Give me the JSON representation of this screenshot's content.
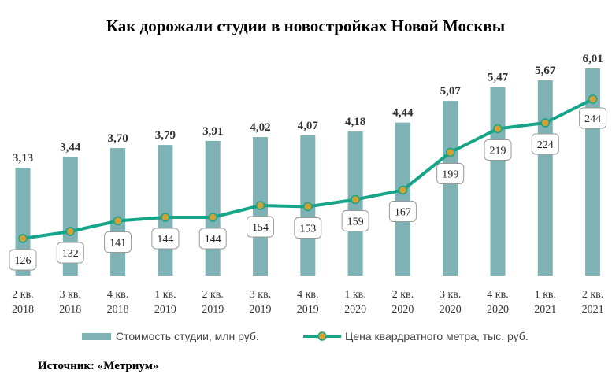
{
  "chart_data": {
    "type": "bar",
    "title": "Как дорожали студии в новостройках  Новой  Москвы",
    "categories": [
      [
        "2 кв.",
        "2018"
      ],
      [
        "3 кв.",
        "2018"
      ],
      [
        "4 кв.",
        "2018"
      ],
      [
        "1 кв.",
        "2019"
      ],
      [
        "2 кв.",
        "2019"
      ],
      [
        "3 кв.",
        "2019"
      ],
      [
        "4 кв.",
        "2019"
      ],
      [
        "1 кв.",
        "2020"
      ],
      [
        "2 кв.",
        "2020"
      ],
      [
        "3 кв.",
        "2020"
      ],
      [
        "4 кв.",
        "2020"
      ],
      [
        "1 кв.",
        "2021"
      ],
      [
        "2 кв.",
        "2021"
      ]
    ],
    "series": [
      {
        "name": "Стоимость студии, млн руб.",
        "type": "bar",
        "color": "#7fb2b4",
        "values": [
          3.13,
          3.44,
          3.7,
          3.79,
          3.91,
          4.02,
          4.07,
          4.18,
          4.44,
          5.07,
          5.47,
          5.67,
          6.01
        ],
        "labels": [
          "3,13",
          "3,44",
          "3,70",
          "3,79",
          "3,91",
          "4,02",
          "4,07",
          "4,18",
          "4,44",
          "5,07",
          "5,47",
          "5,67",
          "6,01"
        ]
      },
      {
        "name": "Цена квардратного метра, тыс. руб.",
        "type": "line",
        "color": "#17a589",
        "marker_color": "#d4a135",
        "values": [
          126,
          132,
          141,
          144,
          144,
          154,
          153,
          159,
          167,
          199,
          219,
          224,
          244
        ],
        "labels": [
          "126",
          "132",
          "141",
          "144",
          "144",
          "154",
          "153",
          "159",
          "167",
          "199",
          "219",
          "224",
          "244"
        ]
      }
    ],
    "legend_position": "bottom",
    "grid": false
  },
  "source": "Источник: «Метриум»"
}
